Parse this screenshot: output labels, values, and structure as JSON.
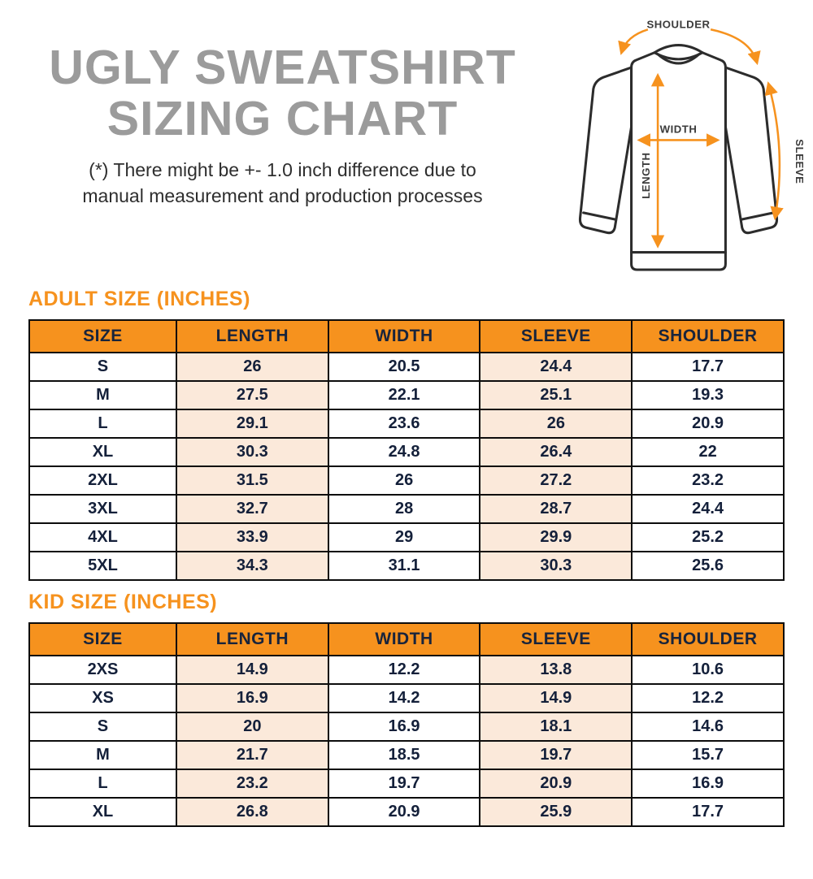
{
  "header": {
    "title_line1": "UGLY SWEATSHIRT",
    "title_line2": "SIZING CHART",
    "disclaimer_line1": "(*) There might be +- 1.0 inch difference due to",
    "disclaimer_line2": "manual measurement and production processes"
  },
  "diagram": {
    "shoulder_label": "SHOULDER",
    "width_label": "WIDTH",
    "length_label": "LENGTH",
    "sleeve_label": "SLEEVE"
  },
  "colors": {
    "accent_orange": "#F6921E",
    "column_highlight": "#FBE9DA",
    "title_gray": "#9B9B9B",
    "table_text_navy": "#18243C"
  },
  "adult": {
    "section_title": "ADULT SIZE (INCHES)",
    "headers": [
      "SIZE",
      "LENGTH",
      "WIDTH",
      "SLEEVE",
      "SHOULDER"
    ],
    "rows": [
      [
        "S",
        "26",
        "20.5",
        "24.4",
        "17.7"
      ],
      [
        "M",
        "27.5",
        "22.1",
        "25.1",
        "19.3"
      ],
      [
        "L",
        "29.1",
        "23.6",
        "26",
        "20.9"
      ],
      [
        "XL",
        "30.3",
        "24.8",
        "26.4",
        "22"
      ],
      [
        "2XL",
        "31.5",
        "26",
        "27.2",
        "23.2"
      ],
      [
        "3XL",
        "32.7",
        "28",
        "28.7",
        "24.4"
      ],
      [
        "4XL",
        "33.9",
        "29",
        "29.9",
        "25.2"
      ],
      [
        "5XL",
        "34.3",
        "31.1",
        "30.3",
        "25.6"
      ]
    ]
  },
  "kid": {
    "section_title": "KID SIZE (INCHES)",
    "headers": [
      "SIZE",
      "LENGTH",
      "WIDTH",
      "SLEEVE",
      "SHOULDER"
    ],
    "rows": [
      [
        "2XS",
        "14.9",
        "12.2",
        "13.8",
        "10.6"
      ],
      [
        "XS",
        "16.9",
        "14.2",
        "14.9",
        "12.2"
      ],
      [
        "S",
        "20",
        "16.9",
        "18.1",
        "14.6"
      ],
      [
        "M",
        "21.7",
        "18.5",
        "19.7",
        "15.7"
      ],
      [
        "L",
        "23.2",
        "19.7",
        "20.9",
        "16.9"
      ],
      [
        "XL",
        "26.8",
        "20.9",
        "25.9",
        "17.7"
      ]
    ]
  }
}
